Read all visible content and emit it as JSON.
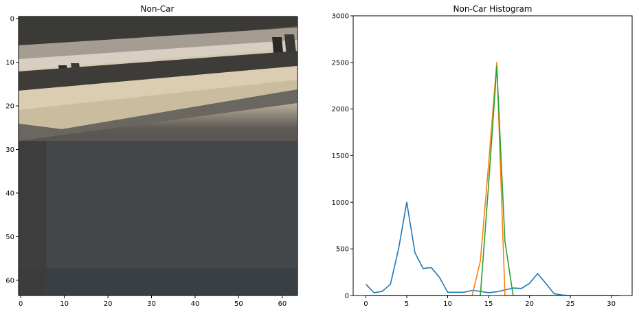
{
  "chart_data": [
    {
      "type": "image",
      "title": "Non-Car",
      "xlim": [
        0,
        64
      ],
      "ylim": [
        64,
        0
      ],
      "xticks": [
        0,
        10,
        20,
        30,
        40,
        50,
        60
      ],
      "yticks": [
        0,
        10,
        20,
        30,
        40,
        50,
        60
      ],
      "image_description": "grayscale-ish road scene: light beige guardrail band across the top, dark asphalt below"
    },
    {
      "type": "line",
      "title": "Non-Car Histogram",
      "xlim": [
        -1.55,
        32.55
      ],
      "ylim": [
        0,
        3000
      ],
      "xticks": [
        0,
        5,
        10,
        15,
        20,
        25,
        30
      ],
      "yticks": [
        0,
        500,
        1000,
        1500,
        2000,
        2500,
        3000
      ],
      "x": [
        0,
        1,
        2,
        3,
        4,
        5,
        6,
        7,
        8,
        9,
        10,
        11,
        12,
        13,
        14,
        15,
        16,
        17,
        18,
        19,
        20,
        21,
        22,
        23,
        24,
        25,
        26,
        27,
        28,
        29,
        30,
        31
      ],
      "series": [
        {
          "color": "#1f77b4",
          "values": [
            120,
            30,
            45,
            120,
            500,
            1000,
            460,
            290,
            300,
            195,
            35,
            35,
            35,
            55,
            45,
            30,
            40,
            60,
            80,
            75,
            130,
            235,
            130,
            20,
            5,
            0,
            0,
            0,
            0,
            0,
            0,
            0
          ]
        },
        {
          "color": "#ff7f0e",
          "values": [
            0,
            0,
            0,
            0,
            0,
            0,
            0,
            0,
            0,
            0,
            0,
            0,
            0,
            0,
            370,
            1400,
            2500,
            0,
            0,
            0,
            0,
            0,
            0,
            0,
            0,
            0,
            0,
            0,
            0,
            0,
            0,
            0
          ]
        },
        {
          "color": "#2ca02c",
          "values": [
            0,
            0,
            0,
            0,
            0,
            0,
            0,
            0,
            0,
            0,
            0,
            0,
            0,
            0,
            0,
            1180,
            2460,
            580,
            0,
            0,
            0,
            0,
            0,
            0,
            0,
            0,
            0,
            0,
            0,
            0,
            0,
            0
          ]
        }
      ],
      "grid": false
    }
  ]
}
